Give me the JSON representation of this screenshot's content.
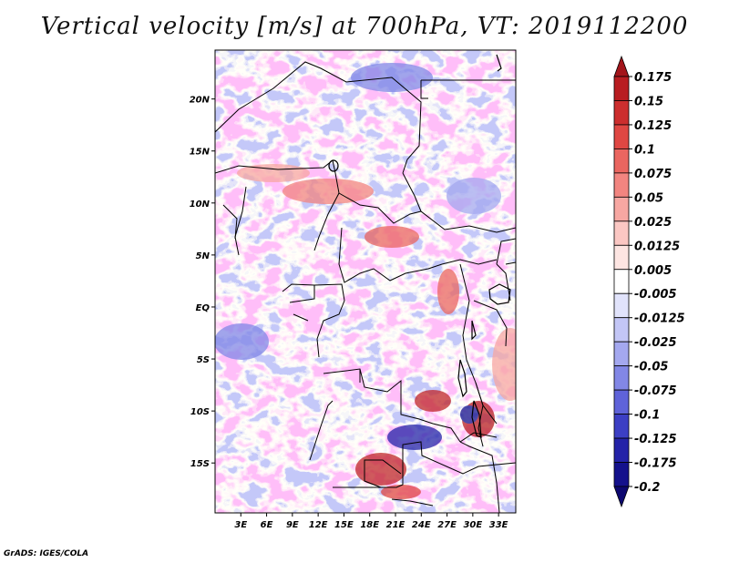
{
  "title": "Vertical velocity [m/s] at 700hPa, VT: 2019112200",
  "credit": "GrADS: IGES/COLA",
  "map": {
    "lat_labels": [
      {
        "text": "20N",
        "lat": 20
      },
      {
        "text": "15N",
        "lat": 15
      },
      {
        "text": "10N",
        "lat": 10
      },
      {
        "text": "5N",
        "lat": 5
      },
      {
        "text": "EQ",
        "lat": 0
      },
      {
        "text": "5S",
        "lat": -5
      },
      {
        "text": "10S",
        "lat": -10
      },
      {
        "text": "15S",
        "lat": -15
      }
    ],
    "lon_labels": [
      {
        "text": "3E",
        "lon": 3
      },
      {
        "text": "6E",
        "lon": 6
      },
      {
        "text": "9E",
        "lon": 9
      },
      {
        "text": "12E",
        "lon": 12
      },
      {
        "text": "15E",
        "lon": 15
      },
      {
        "text": "18E",
        "lon": 18
      },
      {
        "text": "21E",
        "lon": 21
      },
      {
        "text": "24E",
        "lon": 24
      },
      {
        "text": "27E",
        "lon": 27
      },
      {
        "text": "30E",
        "lon": 30
      },
      {
        "text": "33E",
        "lon": 33
      }
    ],
    "lat_range": [
      -19.8,
      24.7
    ],
    "lon_range": [
      0,
      35
    ]
  },
  "colorbar": {
    "levels": [
      "0.175",
      "0.15",
      "0.125",
      "0.1",
      "0.075",
      "0.05",
      "0.025",
      "0.0125",
      "0.005",
      "-0.005",
      "-0.0125",
      "-0.025",
      "-0.05",
      "-0.075",
      "-0.1",
      "-0.125",
      "-0.175",
      "-0.2"
    ],
    "colors": [
      "#a3151b",
      "#b81d21",
      "#cc2e2e",
      "#df4743",
      "#ea6660",
      "#f28580",
      "#f7a7a2",
      "#fbc7c3",
      "#fde5e2",
      "#ffffff",
      "#e1e3fb",
      "#c3c6f6",
      "#a4a8ef",
      "#8287e6",
      "#5f63d9",
      "#3c3fc4",
      "#2423a8",
      "#14118c",
      "#0d0870"
    ]
  }
}
